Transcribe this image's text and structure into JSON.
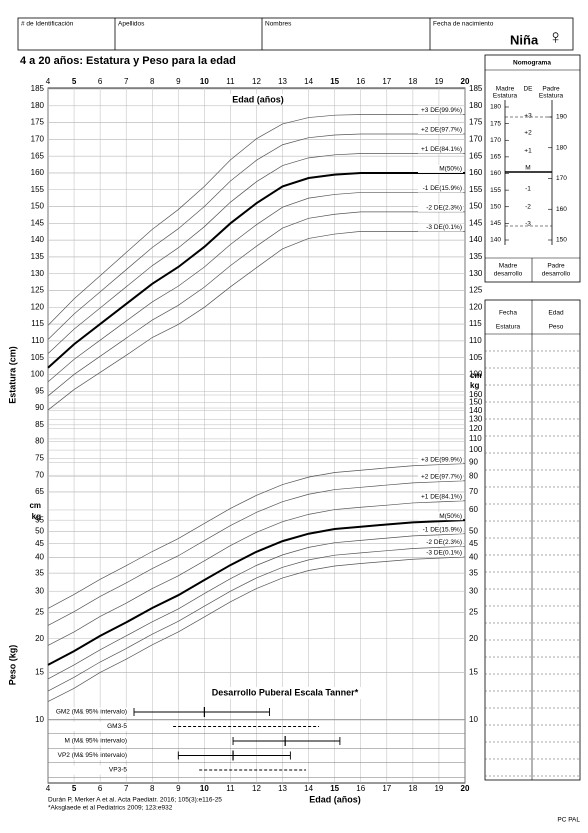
{
  "header": {
    "fields": [
      "# de Identificación",
      "Apellidos",
      "Nombres",
      "Fecha de nacimiento"
    ],
    "sex": "Niña",
    "sex_symbol": "♀"
  },
  "title": "4 a 20 años: Estatura y Peso para la edad",
  "chart_data": [
    {
      "type": "line",
      "x_label": "Edad (años)",
      "y_label": "Estatura (cm)",
      "unit": "cm",
      "x": [
        4,
        5,
        6,
        7,
        8,
        9,
        10,
        11,
        12,
        13,
        14,
        15,
        16,
        17,
        18,
        19,
        20
      ],
      "xlim": [
        4,
        20
      ],
      "xticks": [
        4,
        5,
        6,
        7,
        8,
        9,
        10,
        11,
        12,
        13,
        14,
        15,
        16,
        17,
        18,
        19,
        20
      ],
      "ylim": [
        65,
        185
      ],
      "yticks": [
        185,
        180,
        175,
        170,
        165,
        160,
        155,
        150,
        145,
        140,
        135,
        130,
        125,
        120,
        115,
        110,
        105,
        100,
        95,
        90,
        85,
        80,
        75,
        70,
        65
      ],
      "y2lim": [
        65,
        185
      ],
      "y2ticks": [
        185,
        180,
        175,
        170,
        165,
        160,
        155,
        150,
        145,
        140,
        135,
        130,
        125,
        120,
        115,
        110,
        105,
        100
      ],
      "grid": true,
      "series": [
        {
          "name": "+3 DE(99.9%)",
          "color": "#555555",
          "line_width": 0.7,
          "values": [
            114.6,
            122.5,
            129.4,
            136.3,
            143.2,
            149.1,
            156,
            163.9,
            170.2,
            174.6,
            176.5,
            177.2,
            177.4,
            177.4,
            177.4,
            177.4,
            177.4
          ]
        },
        {
          "name": "+2 DE(97.7%)",
          "color": "#555555",
          "line_width": 0.7,
          "values": [
            110.4,
            118,
            124.6,
            131.2,
            137.8,
            143.4,
            150,
            157.6,
            163.8,
            168.4,
            170.5,
            171.3,
            171.6,
            171.6,
            171.6,
            171.6,
            171.6
          ]
        },
        {
          "name": "+1 DE(84.1%)",
          "color": "#555555",
          "line_width": 0.7,
          "values": [
            106.2,
            113.5,
            119.8,
            126.1,
            132.4,
            137.7,
            144,
            151.3,
            157.4,
            162.2,
            164.5,
            165.4,
            165.8,
            165.8,
            165.8,
            165.8,
            165.8
          ]
        },
        {
          "name": "M(50%)",
          "color": "#000000",
          "line_width": 2,
          "values": [
            102,
            109,
            115,
            121,
            127,
            132,
            138,
            145,
            151,
            156,
            158.5,
            159.5,
            160,
            160,
            160,
            160,
            160
          ]
        },
        {
          "name": "-1 DE(15.9%)",
          "color": "#555555",
          "line_width": 0.7,
          "values": [
            97.8,
            104.5,
            110.2,
            115.9,
            121.6,
            126.3,
            132,
            138.7,
            144.6,
            149.8,
            152.5,
            153.6,
            154.2,
            154.2,
            154.2,
            154.2,
            154.2
          ]
        },
        {
          "name": "-2 DE(2.3%)",
          "color": "#555555",
          "line_width": 0.7,
          "values": [
            93.6,
            100,
            105.4,
            110.8,
            116.2,
            120.6,
            126,
            132.4,
            138.2,
            143.6,
            146.5,
            147.7,
            148.4,
            148.4,
            148.4,
            148.4,
            148.4
          ]
        },
        {
          "name": "-3 DE(0.1%)",
          "color": "#555555",
          "line_width": 0.7,
          "values": [
            89.4,
            95.5,
            100.6,
            105.7,
            111,
            114.9,
            120,
            126.1,
            131.8,
            137.4,
            140.5,
            141.8,
            142.6,
            142.6,
            142.6,
            142.6,
            142.6
          ]
        }
      ]
    },
    {
      "type": "line",
      "x_label": "Edad (años)",
      "y_label": "Peso (kg)",
      "unit": "kg",
      "log_scale": true,
      "x": [
        4,
        5,
        6,
        7,
        8,
        9,
        10,
        11,
        12,
        13,
        14,
        15,
        16,
        17,
        18,
        19,
        20
      ],
      "xlim": [
        4,
        20
      ],
      "xticks": [
        4,
        5,
        6,
        7,
        8,
        9,
        10,
        11,
        12,
        13,
        14,
        15,
        16,
        17,
        18,
        19,
        20
      ],
      "ylim": [
        10,
        160
      ],
      "yticks": [
        55,
        50,
        45,
        40,
        35,
        30,
        25,
        20,
        15,
        10
      ],
      "y2lim": [
        10,
        160
      ],
      "y2ticks": [
        160,
        150,
        140,
        130,
        120,
        110,
        100,
        90,
        80,
        70,
        60,
        50,
        45,
        40,
        35,
        30,
        25,
        20,
        15,
        10
      ],
      "grid": true,
      "series": [
        {
          "name": "+3 DE(99.9%)",
          "color": "#555555",
          "line_width": 0.7,
          "values": [
            25.9,
            29.2,
            33.2,
            37.3,
            42.1,
            47,
            53.5,
            60.8,
            68,
            74.5,
            79.4,
            82.6,
            84.2,
            85.9,
            87.5,
            88.3,
            89.1
          ]
        },
        {
          "name": "+2 DE(97.7%)",
          "color": "#555555",
          "line_width": 0.7,
          "values": [
            22.4,
            25.2,
            28.7,
            32.2,
            36.4,
            40.6,
            46.2,
            52.5,
            58.8,
            64.4,
            68.6,
            71.4,
            72.8,
            74.2,
            75.6,
            76.3,
            77
          ]
        },
        {
          "name": "+1 DE(84.1%)",
          "color": "#555555",
          "line_width": 0.7,
          "values": [
            18.9,
            21.2,
            24.2,
            27.1,
            30.7,
            34.2,
            38.9,
            44.3,
            49.6,
            54.3,
            57.8,
            60.2,
            61.4,
            62.5,
            63.7,
            64.3,
            64.9
          ]
        },
        {
          "name": "M(50%)",
          "color": "#000000",
          "line_width": 2,
          "values": [
            16,
            18,
            20.5,
            23,
            26,
            29,
            33,
            37.5,
            42,
            46,
            49,
            51,
            52,
            53,
            54,
            54.5,
            55
          ]
        },
        {
          "name": "-1 DE(15.9%)",
          "color": "#555555",
          "line_width": 0.7,
          "values": [
            14.2,
            16,
            18.2,
            20.5,
            23.1,
            25.8,
            29.4,
            33.4,
            37.4,
            40.9,
            43.6,
            45.4,
            46.3,
            47.2,
            48.1,
            48.5,
            49
          ]
        },
        {
          "name": "-2 DE(2.3%)",
          "color": "#555555",
          "line_width": 0.7,
          "values": [
            12.8,
            14.4,
            16.4,
            18.4,
            20.8,
            23.2,
            26.4,
            30,
            33.6,
            36.8,
            39.2,
            40.8,
            41.6,
            42.4,
            43.2,
            43.6,
            44
          ]
        },
        {
          "name": "-3 DE(0.1%)",
          "color": "#555555",
          "line_width": 0.7,
          "values": [
            11.7,
            13.1,
            15,
            16.8,
            19,
            21.2,
            24.1,
            27.4,
            30.7,
            33.6,
            35.8,
            37.2,
            38,
            38.7,
            39.4,
            39.8,
            40.2
          ]
        }
      ]
    },
    {
      "type": "range",
      "title": "Desarrollo Puberal Escala Tanner*",
      "xlim": [
        4,
        20
      ],
      "categories": [
        "GM2 (M& 95% intervalo)",
        "GM3-5",
        "M (M& 95% intervalo)",
        "VP2 (M& 95% intervalo)",
        "VP3-5"
      ],
      "low": [
        7.3,
        8.8,
        11.1,
        9,
        9.8
      ],
      "high": [
        12.5,
        14.4,
        15.2,
        13.3,
        13.9
      ],
      "median": [
        10,
        null,
        13.1,
        11.1,
        null
      ],
      "dashed": [
        false,
        true,
        false,
        false,
        true
      ],
      "color": "#000000"
    }
  ],
  "nomogram": {
    "title": "Nomograma",
    "mother_height": [
      "Madre",
      "Estatura"
    ],
    "sd_header": "DE",
    "father_height": [
      "Padre",
      "Estatura"
    ],
    "mother_lim": [
      140,
      180
    ],
    "mother_ticks": [
      180,
      175,
      170,
      165,
      160,
      155,
      150,
      145,
      140
    ],
    "father_lim": [
      150,
      190
    ],
    "father_ticks": [
      190,
      180,
      170,
      160,
      150
    ],
    "sd_labels": [
      "+3",
      "+2",
      "+1",
      "M",
      "-1",
      "-2",
      "-3"
    ],
    "mother_development": [
      "Madre",
      "desarrollo"
    ],
    "father_development": [
      "Padre",
      "desarrollo"
    ]
  },
  "measurements": {
    "headers": [
      [
        "Fecha",
        "Edad"
      ],
      [
        "Estatura",
        "Peso"
      ]
    ]
  },
  "footer": {
    "references": [
      "Durán P, Merker A et al. Acta Paediatr. 2016; 105(3):e116-25",
      "*Aksglaede et al Pediatrics 2009; 123:e932"
    ],
    "code": "PC PAL"
  }
}
